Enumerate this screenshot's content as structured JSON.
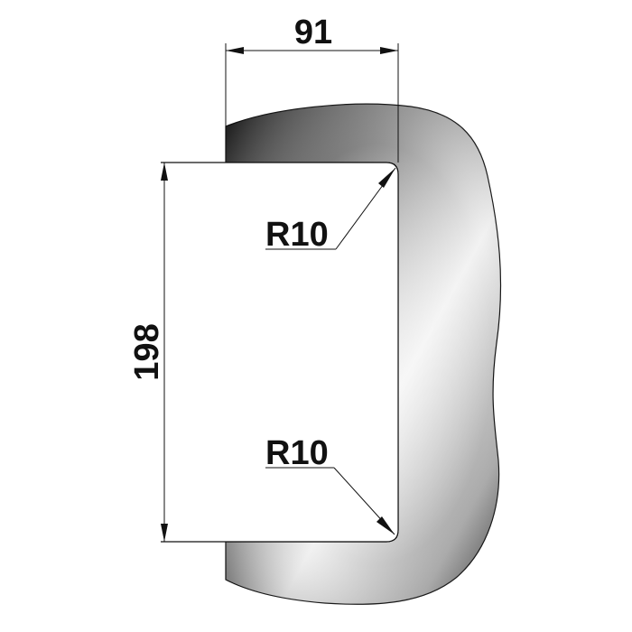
{
  "dimensions": {
    "width_label": "91",
    "height_label": "198",
    "radius_top_label": "R10",
    "radius_bottom_label": "R10"
  },
  "colors": {
    "background": "#ffffff",
    "outline": "#111111",
    "gradient_dark": "#3a3a3a",
    "gradient_light": "#f4f4f4",
    "dimension_ink": "#111111"
  }
}
